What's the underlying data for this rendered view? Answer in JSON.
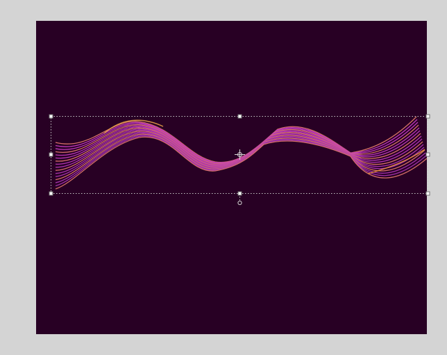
{
  "canvas": {
    "workspace_color": "#d4d4d4",
    "artboard_color": "#280024"
  },
  "artwork": {
    "name": "wave-ribbon-blend",
    "gradient_colors": {
      "magenta": "#c73bc2",
      "violet": "#8e2f9f",
      "orange": "#e8923a",
      "gold": "#f0a848"
    },
    "stroke_count": 16
  },
  "selection": {
    "active": true,
    "box_color": "#c9c9c9",
    "handle_fill": "#ffffff",
    "handle_stroke": "#6f6f6f",
    "icons": [
      "resize-handle",
      "rotate-handle",
      "pivot-point-icon"
    ]
  }
}
